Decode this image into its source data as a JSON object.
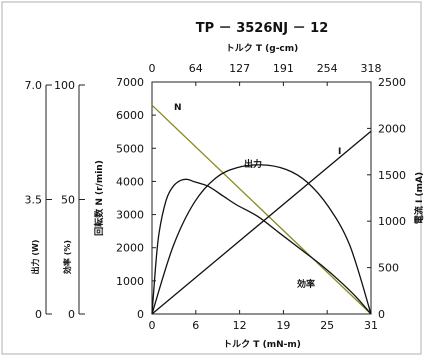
{
  "chart_data": {
    "type": "line",
    "title": "TP － 3526NJ － 12",
    "top_axis": {
      "label": "トルク T (g-cm)",
      "ticks": [
        0,
        64,
        127,
        191,
        254,
        318
      ],
      "range": [
        0,
        318
      ]
    },
    "bottom_axis": {
      "label": "トルク T (mN-m)",
      "ticks": [
        0,
        6,
        12,
        19,
        25,
        31
      ],
      "range": [
        0,
        31
      ]
    },
    "left_axis": {
      "label": "回転数 N (r/min)",
      "ticks": [
        0,
        1000,
        2000,
        3000,
        4000,
        5000,
        6000,
        7000
      ],
      "range": [
        0,
        7000
      ]
    },
    "right_axis": {
      "label": "電流 I (mA)",
      "ticks": [
        0,
        500,
        1000,
        1500,
        2000,
        2500
      ],
      "range": [
        0,
        2500
      ]
    },
    "output_axis": {
      "label": "出力 (W)",
      "ticks": [
        "0",
        "3.5",
        "7.0"
      ],
      "range": [
        0,
        7
      ]
    },
    "efficiency_axis": {
      "label": "効率 (%)",
      "ticks": [
        "0",
        "50",
        "100"
      ],
      "range": [
        0,
        100
      ]
    },
    "series": [
      {
        "name": "N",
        "axis": "left",
        "color": "#8a8a1e",
        "x": [
          0,
          31
        ],
        "y": [
          6300,
          0
        ]
      },
      {
        "name": "I",
        "axis": "right",
        "color": "#111111",
        "x": [
          0,
          31
        ],
        "y": [
          0,
          1970
        ]
      },
      {
        "name": "出力",
        "axis": "output",
        "color": "#111111",
        "x": [
          0,
          3,
          6,
          9,
          12,
          15.5,
          19,
          22,
          25,
          28,
          31
        ],
        "y": [
          0,
          2.05,
          3.37,
          4.1,
          4.41,
          4.5,
          4.36,
          3.97,
          3.23,
          2.07,
          0
        ]
      },
      {
        "name": "効率",
        "axis": "efficiency",
        "color": "#111111",
        "x": [
          0,
          0.5,
          1,
          2,
          3,
          4,
          5,
          6,
          8,
          10,
          12,
          15,
          18,
          21,
          24,
          27,
          29,
          31
        ],
        "y": [
          0,
          20,
          35,
          49,
          55,
          57.5,
          58,
          57,
          55,
          51,
          47,
          42,
          35,
          28,
          21,
          13,
          7,
          0
        ]
      }
    ]
  }
}
